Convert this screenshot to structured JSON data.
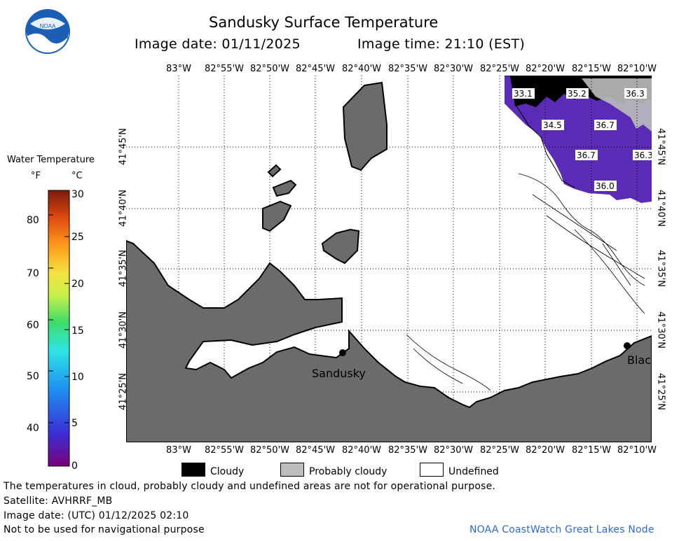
{
  "header": {
    "title": "Sandusky Surface Temperature",
    "image_date": "Image date: 01/11/2025",
    "image_time": "Image time: 21:10 (EST)"
  },
  "logo": {
    "text": "NOAA"
  },
  "colorbar": {
    "title": "Water Temperature",
    "unit_f": "°F",
    "unit_c": "°C",
    "f_ticks": [
      "80",
      "70",
      "60",
      "50",
      "40"
    ],
    "c_ticks": [
      "30",
      "25",
      "20",
      "15",
      "10",
      "5",
      "0"
    ],
    "f_range": [
      32,
      86
    ],
    "c_range": [
      0,
      30
    ]
  },
  "map": {
    "lon_labels": [
      "83°W",
      "82°55'W",
      "82°50'W",
      "82°45'W",
      "82°40'W",
      "82°35'W",
      "82°30'W",
      "82°25'W",
      "82°20'W",
      "82°15'W",
      "82°10'W"
    ],
    "lat_labels": [
      "41°45'N",
      "41°40'N",
      "41°35'N",
      "41°30'N",
      "41°25'N"
    ],
    "temperatures_f": [
      "33.1",
      "35.2",
      "36.3",
      "34.5",
      "36.7",
      "36.7",
      "36.3",
      "36.0"
    ],
    "cities": [
      "Sandusky",
      "Blac"
    ],
    "colors": {
      "land": "#6b6b6b",
      "water": "#ffffff",
      "cloudy": "#000000",
      "probably_cloudy": "#bdbdbd",
      "cold_water": "#5a2bb5"
    }
  },
  "legend": {
    "cloudy": "Cloudy",
    "probably_cloudy": "Probably cloudy",
    "undefined": "Undefined"
  },
  "footer": {
    "disclaimer": "The temperatures in cloud, probably cloudy and undefined areas are not for operational purpose.",
    "satellite": "Satellite: AVHRRF_MB",
    "utc_date": "Image date: (UTC) 01/12/2025  02:10",
    "navigation": "Not to be used for navigational purpose",
    "credit": "NOAA CoastWatch Great Lakes Node"
  }
}
